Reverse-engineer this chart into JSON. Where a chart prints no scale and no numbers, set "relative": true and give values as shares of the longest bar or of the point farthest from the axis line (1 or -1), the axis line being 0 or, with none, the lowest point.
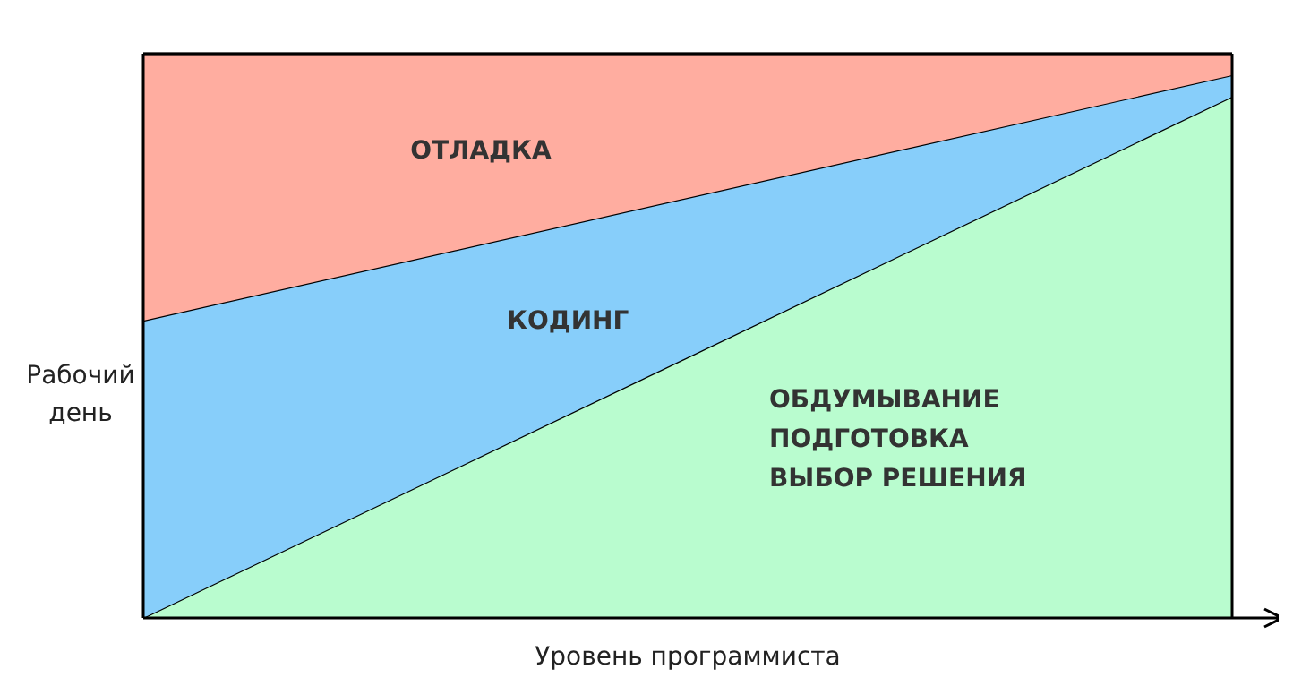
{
  "chart_data": {
    "type": "area",
    "stacked": true,
    "relative": true,
    "xlabel": "Уровень программиста",
    "ylabel": "Рабочий\nдень",
    "categories": [
      null,
      null
    ],
    "series": [
      {
        "name": "ОБДУМЫВАНИЕ\nПОДГОТОВКА\nВЫБОР РЕШЕНИЯ",
        "color": "#b9fccf",
        "values": [
          0,
          0.924
        ]
      },
      {
        "name": "КОДИНГ",
        "color": "#87cefa",
        "values": [
          0.527,
          0.038
        ]
      },
      {
        "name": "ОТЛАДКА",
        "color": "#ffada0",
        "values": [
          0.473,
          0.038
        ]
      }
    ]
  }
}
